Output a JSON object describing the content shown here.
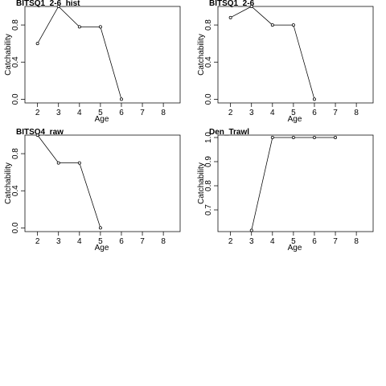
{
  "chart_data": [
    {
      "type": "line",
      "title": "BITSQ1_2-6_hist",
      "xlabel": "Age",
      "ylabel": "Catchability",
      "xlim": [
        1.4,
        8.8
      ],
      "ylim": [
        -0.04,
        1.0
      ],
      "xticks": [
        2,
        3,
        4,
        5,
        6,
        7,
        8
      ],
      "yticks": [
        0.0,
        0.4,
        0.8
      ],
      "ytick_labels": [
        "0.0",
        "0.4",
        "0.8"
      ],
      "grid": false,
      "series": [
        {
          "x": [
            2,
            3,
            4,
            5,
            6
          ],
          "values": [
            0.6,
            1.0,
            0.78,
            0.78,
            0.0
          ]
        }
      ]
    },
    {
      "type": "line",
      "title": "BITSQ1_2-6",
      "xlabel": "Age",
      "ylabel": "Catchability",
      "xlim": [
        1.4,
        8.8
      ],
      "ylim": [
        -0.04,
        1.0
      ],
      "xticks": [
        2,
        3,
        4,
        5,
        6,
        7,
        8
      ],
      "yticks": [
        0.0,
        0.4,
        0.8
      ],
      "ytick_labels": [
        "0.0",
        "0.4",
        "0.8"
      ],
      "grid": false,
      "series": [
        {
          "x": [
            2,
            3,
            4,
            5,
            6
          ],
          "values": [
            0.88,
            1.0,
            0.8,
            0.8,
            0.0
          ]
        }
      ]
    },
    {
      "type": "line",
      "title": "BITSQ4_raw",
      "xlabel": "Age",
      "ylabel": "Catchability",
      "xlim": [
        1.4,
        8.8
      ],
      "ylim": [
        -0.04,
        1.0
      ],
      "xticks": [
        2,
        3,
        4,
        5,
        6,
        7,
        8
      ],
      "yticks": [
        0.0,
        0.4,
        0.8
      ],
      "ytick_labels": [
        "0.0",
        "0.4",
        "0.8"
      ],
      "grid": false,
      "series": [
        {
          "x": [
            2,
            3,
            4,
            5
          ],
          "values": [
            1.0,
            0.7,
            0.7,
            0.0
          ]
        }
      ]
    },
    {
      "type": "line",
      "title": "Den_Trawl",
      "xlabel": "Age",
      "ylabel": "Catchability",
      "xlim": [
        1.4,
        8.8
      ],
      "ylim": [
        0.61,
        1.01
      ],
      "xticks": [
        2,
        3,
        4,
        5,
        6,
        7,
        8
      ],
      "yticks": [
        0.7,
        0.8,
        0.9,
        1.0
      ],
      "ytick_labels": [
        "0.7",
        "0.8",
        "0.9",
        "1.0"
      ],
      "grid": false,
      "series": [
        {
          "x": [
            3,
            4,
            5,
            6,
            7
          ],
          "values": [
            0.615,
            1.0,
            1.0,
            1.0,
            1.0
          ]
        }
      ]
    }
  ]
}
